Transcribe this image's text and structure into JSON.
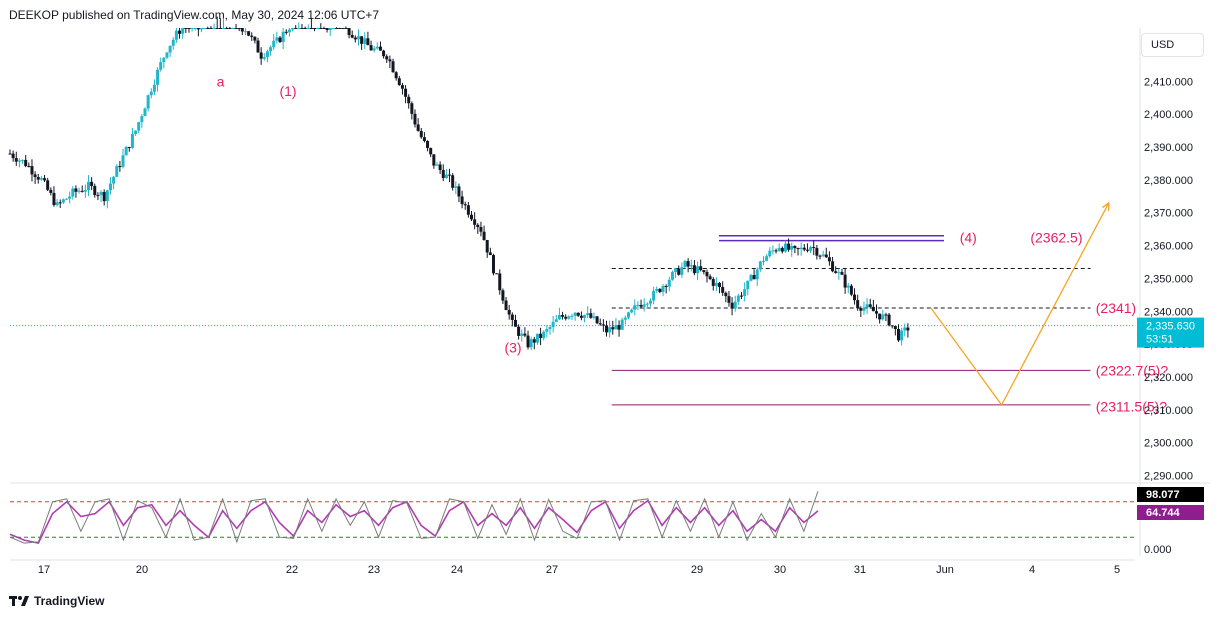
{
  "header": {
    "text": "DEEKOP published on TradingView.com, May 30, 2024 12:06 UTC+7"
  },
  "currency": "USD",
  "footer": {
    "brand": "TradingView"
  },
  "colors": {
    "up": "#26a69a",
    "up_body": "#22b6c9",
    "down": "#131722",
    "wave_label": "#e91e63",
    "resistance": "#5b2cc4",
    "support": "#8e1d6b",
    "projection": "#f5a623",
    "price_line": "#00bcd4",
    "stoch_k": "#7b7b7b",
    "stoch_d": "#b23cb3",
    "overbought": "#e53935",
    "oversold": "#2e7d32"
  },
  "price_tag": {
    "price": "2,335.630",
    "countdown": "53:51",
    "color": "#00bcd4"
  },
  "chart_data": [
    {
      "type": "candlestick",
      "symbol_currency": "USD",
      "ylim": [
        2285,
        2430
      ],
      "y_ticks": [
        "2,290.000",
        "2,300.000",
        "2,310.000",
        "2,320.000",
        "2,330.000",
        "2,340.000",
        "2,350.000",
        "2,360.000",
        "2,370.000",
        "2,380.000",
        "2,390.000",
        "2,400.000",
        "2,410.000"
      ],
      "x_ticks": [
        "17",
        "20",
        "22",
        "23",
        "24",
        "27",
        "29",
        "30",
        "31",
        "Jun",
        "4",
        "5"
      ],
      "path": [
        [
          0,
          2388
        ],
        [
          6,
          2385
        ],
        [
          12,
          2380
        ],
        [
          18,
          2372
        ],
        [
          24,
          2376
        ],
        [
          30,
          2378
        ],
        [
          36,
          2375
        ],
        [
          42,
          2385
        ],
        [
          48,
          2395
        ],
        [
          54,
          2408
        ],
        [
          60,
          2420
        ],
        [
          66,
          2427
        ],
        [
          72,
          2426
        ],
        [
          78,
          2430
        ],
        [
          84,
          2428
        ],
        [
          90,
          2426
        ],
        [
          96,
          2418
        ],
        [
          102,
          2422
        ],
        [
          108,
          2428
        ],
        [
          114,
          2430
        ],
        [
          120,
          2426
        ],
        [
          126,
          2428
        ],
        [
          132,
          2424
        ],
        [
          138,
          2420
        ],
        [
          144,
          2418
        ],
        [
          150,
          2408
        ],
        [
          156,
          2395
        ],
        [
          162,
          2385
        ],
        [
          168,
          2380
        ],
        [
          174,
          2372
        ],
        [
          180,
          2365
        ],
        [
          186,
          2350
        ],
        [
          192,
          2336
        ],
        [
          198,
          2330
        ],
        [
          204,
          2333
        ],
        [
          210,
          2338
        ],
        [
          216,
          2340
        ],
        [
          222,
          2338
        ],
        [
          228,
          2334
        ],
        [
          234,
          2336
        ],
        [
          240,
          2342
        ],
        [
          246,
          2345
        ],
        [
          252,
          2350
        ],
        [
          258,
          2354
        ],
        [
          264,
          2352
        ],
        [
          270,
          2348
        ],
        [
          276,
          2342
        ],
        [
          282,
          2348
        ],
        [
          288,
          2356
        ],
        [
          294,
          2360
        ],
        [
          300,
          2358
        ],
        [
          306,
          2360
        ],
        [
          312,
          2356
        ],
        [
          318,
          2350
        ],
        [
          324,
          2342
        ],
        [
          330,
          2340
        ],
        [
          336,
          2337
        ],
        [
          340,
          2332
        ],
        [
          344,
          2335.63
        ]
      ],
      "points_note": "",
      "horizontal_levels": [
        {
          "price": 2363,
          "style": "solid",
          "color": "#5b2cc4",
          "x_range": [
            271,
            357
          ]
        },
        {
          "price": 2361.5,
          "style": "solid",
          "color": "#5b2cc4",
          "x_range": [
            271,
            357
          ]
        },
        {
          "price": 2353,
          "style": "dashed",
          "color": "#131722",
          "x_range": [
            230,
            413
          ]
        },
        {
          "price": 2341,
          "style": "dashed",
          "color": "#131722",
          "x_range": [
            230,
            413
          ]
        },
        {
          "price": 2322,
          "style": "solid",
          "color": "#8e1d6b",
          "x_range": [
            230,
            413
          ]
        },
        {
          "price": 2311.5,
          "style": "solid",
          "color": "#8e1d6b",
          "x_range": [
            230,
            413
          ]
        }
      ],
      "projection": [
        [
          352,
          2341
        ],
        [
          379,
          2311.5
        ],
        [
          420,
          2373
        ]
      ],
      "annotations": [
        {
          "text": "a",
          "x": 79,
          "price": 2410
        },
        {
          "text": "(1)",
          "x": 103,
          "price": 2407
        },
        {
          "text": "(3)",
          "x": 189,
          "price": 2329
        },
        {
          "text": "(4)",
          "x": 363,
          "price": 2362.5
        },
        {
          "text": "(2362.5)",
          "x": 390,
          "price": 2362.5
        },
        {
          "text": "(2341)",
          "x": 415,
          "price": 2341
        },
        {
          "text": "(2322.7(5)?",
          "x": 415,
          "price": 2322
        },
        {
          "text": "(2311.5(5)?",
          "x": 415,
          "price": 2311
        }
      ]
    },
    {
      "type": "line",
      "name": "stochastic",
      "ylim": [
        0,
        100
      ],
      "y_ticks": [
        "0.000"
      ],
      "levels": [
        80,
        20
      ],
      "last_values": {
        "k": "98.077",
        "d": "64.744"
      },
      "k_values": [
        20,
        10,
        12,
        80,
        85,
        30,
        80,
        85,
        15,
        82,
        70,
        20,
        85,
        15,
        20,
        85,
        12,
        82,
        85,
        20,
        18,
        85,
        30,
        85,
        40,
        80,
        20,
        82,
        78,
        18,
        20,
        85,
        80,
        18,
        75,
        25,
        85,
        15,
        84,
        30,
        18,
        80,
        82,
        15,
        82,
        85,
        20,
        82,
        30,
        85,
        20,
        80,
        15,
        60,
        20,
        85,
        30,
        98
      ],
      "d_values": [
        25,
        15,
        10,
        60,
        80,
        55,
        60,
        80,
        40,
        70,
        75,
        40,
        65,
        40,
        20,
        65,
        35,
        65,
        80,
        45,
        22,
        65,
        45,
        75,
        55,
        65,
        40,
        70,
        80,
        40,
        22,
        65,
        80,
        40,
        60,
        40,
        70,
        35,
        70,
        50,
        28,
        65,
        80,
        35,
        65,
        82,
        40,
        70,
        45,
        70,
        40,
        65,
        30,
        50,
        30,
        70,
        45,
        64.7
      ]
    }
  ]
}
